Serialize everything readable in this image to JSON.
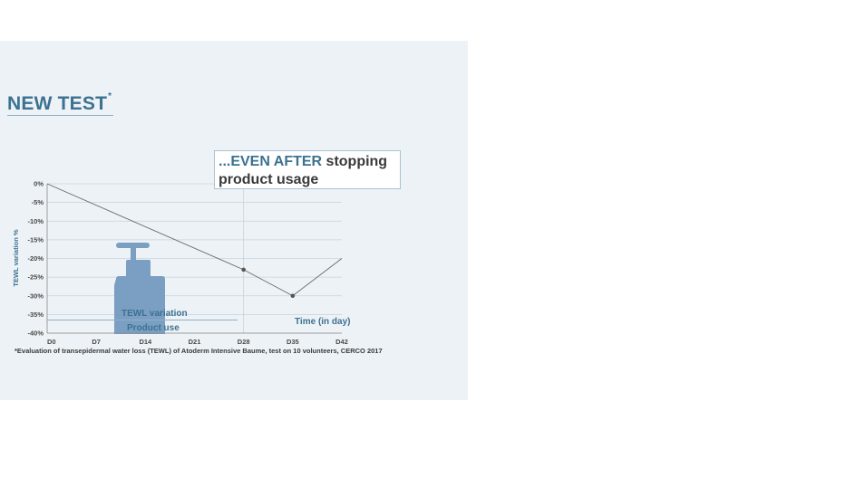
{
  "header": {
    "title": "NEW TEST",
    "title_mark": "*"
  },
  "callout": {
    "accent": "...EVEN AFTER",
    "rest": " stopping product usage"
  },
  "labels": {
    "tewl_variation": "TEWL variation",
    "product_use": "Product use",
    "time": "Time (in day)"
  },
  "footnote": "*Evaluation of transepidermal water loss (TEWL) of Atoderm Intensive Baume, test on 10 volunteers, CERCO 2017",
  "colors": {
    "accent": "#3c7191",
    "bottle": "#7a9fc2",
    "background": "#edf2f6"
  },
  "chart_data": {
    "type": "line",
    "ylabel": "TEWL variation %",
    "xlabel": "Time (in day)",
    "x_categories": [
      "D0",
      "D7",
      "D14",
      "D21",
      "D28",
      "D35",
      "D42"
    ],
    "x_values": [
      0,
      7,
      14,
      21,
      28,
      35,
      42
    ],
    "y_ticks": [
      0,
      -5,
      -10,
      -15,
      -20,
      -25,
      -30,
      -35,
      -40
    ],
    "y_tick_labels": [
      "0%",
      "-5%",
      "-10%",
      "-15%",
      "-20%",
      "-25%",
      "-30%",
      "-35%",
      "-40%"
    ],
    "xlim": [
      0,
      42
    ],
    "ylim": [
      -40,
      0
    ],
    "series": [
      {
        "points": [
          [
            0,
            0
          ],
          [
            28,
            -23
          ],
          [
            35,
            -30
          ],
          [
            42,
            -20
          ]
        ],
        "markers": [
          [
            28,
            -23
          ],
          [
            35,
            -30
          ]
        ]
      }
    ],
    "product_use_period": [
      0,
      28
    ],
    "grid": true
  }
}
